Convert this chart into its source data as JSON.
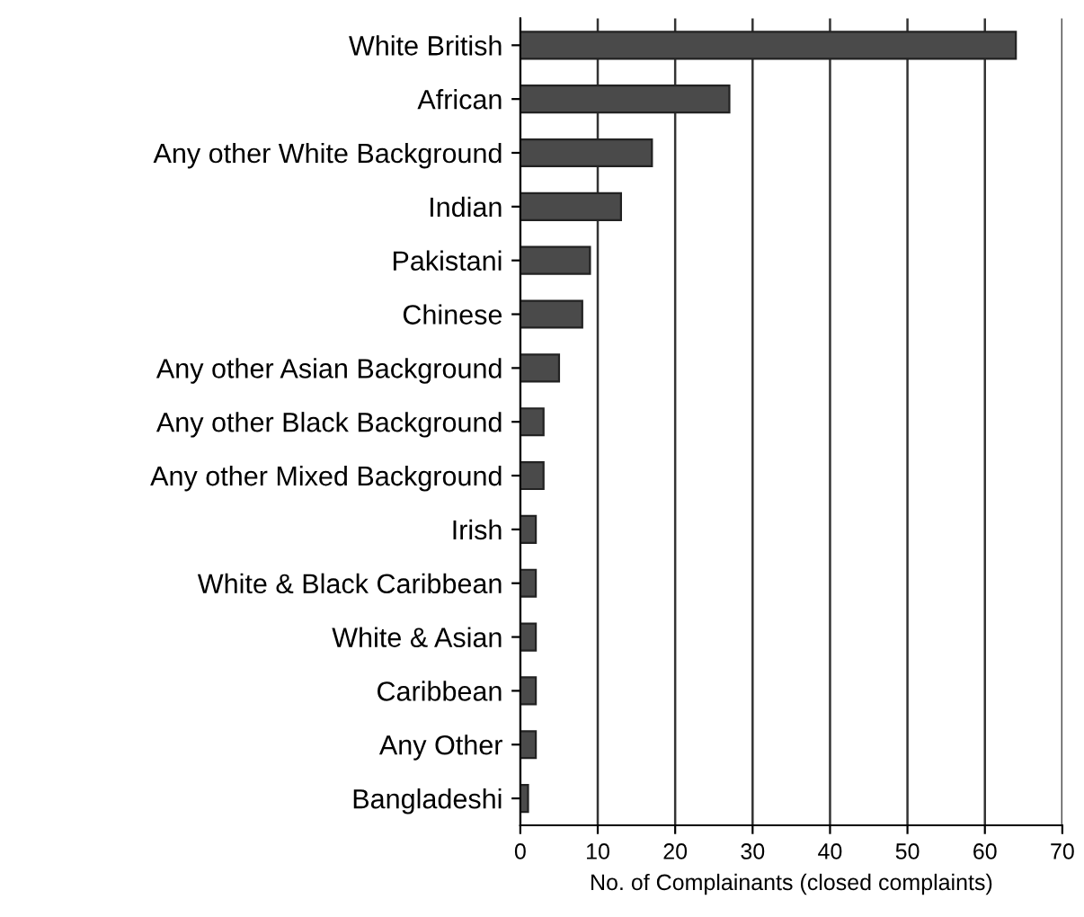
{
  "chart_data": {
    "type": "bar",
    "orientation": "horizontal",
    "xlabel": "No. of Complainants (closed complaints)",
    "categories": [
      "White British",
      "African",
      "Any other White Background",
      "Indian",
      "Pakistani",
      "Chinese",
      "Any other Asian Background",
      "Any other Black Background",
      "Any other Mixed Background",
      "Irish",
      "White & Black Caribbean",
      "White & Asian",
      "Caribbean",
      "Any Other",
      "Bangladeshi"
    ],
    "values": [
      64,
      27,
      17,
      13,
      9,
      8,
      5,
      3,
      3,
      2,
      2,
      2,
      2,
      2,
      1
    ],
    "color": "#4a4a4a",
    "xlim": [
      0,
      70
    ],
    "xticks": [
      0,
      10,
      20,
      30,
      40,
      50,
      60,
      70
    ],
    "grid": "x",
    "legend": false
  }
}
